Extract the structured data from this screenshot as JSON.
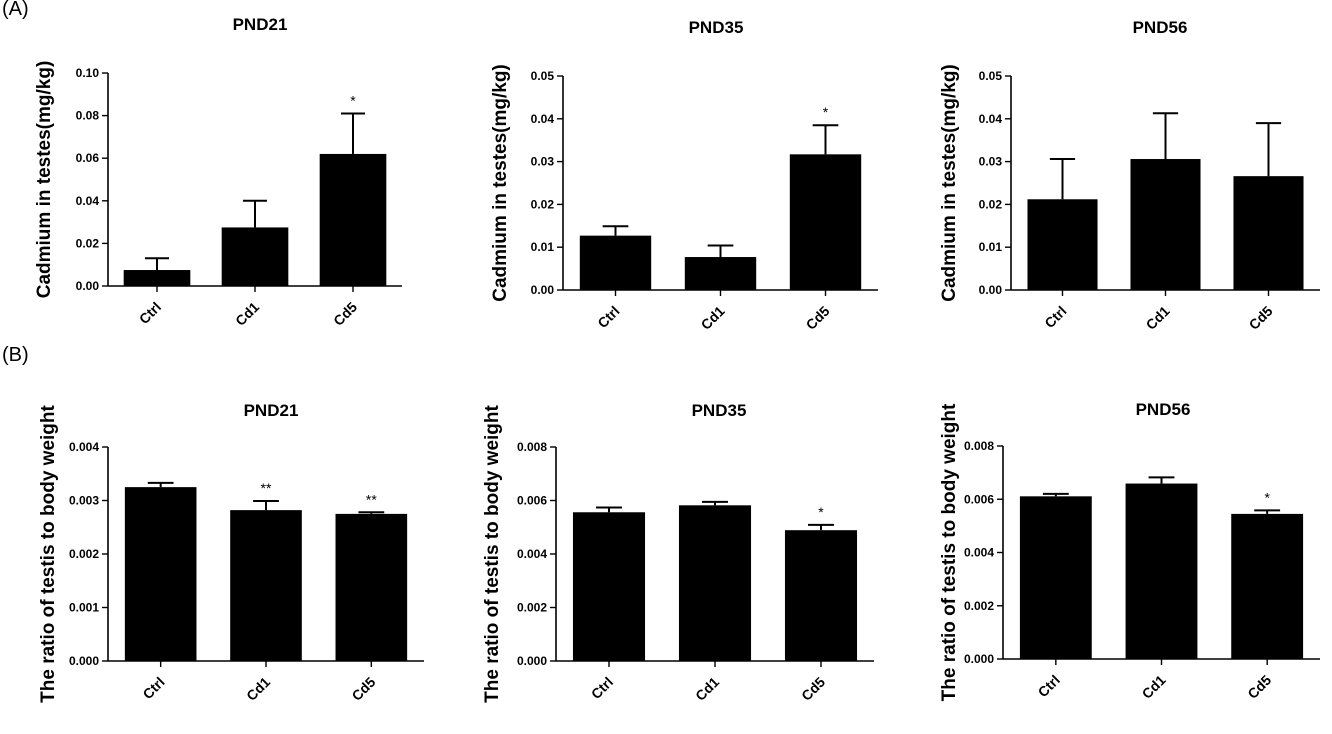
{
  "panels": {
    "A": "(A)",
    "B": "(B)"
  },
  "colors": {
    "bar": "#000000",
    "axis": "#000000"
  },
  "chart_data": [
    {
      "type": "bar",
      "row": "A",
      "title": "PND21",
      "ylabel": "Cadmium in testes(mg/kg)",
      "xlabel": "",
      "categories": [
        "Ctrl",
        "Cd1",
        "Cd5"
      ],
      "values": [
        0.0075,
        0.0275,
        0.062
      ],
      "errors": [
        0.0055,
        0.0125,
        0.019
      ],
      "annotations": [
        "",
        "",
        "*"
      ],
      "ylim": [
        0,
        0.1
      ],
      "yticks": [
        "0.00",
        "0.02",
        "0.04",
        "0.06",
        "0.08",
        "0.10"
      ],
      "grid": false
    },
    {
      "type": "bar",
      "row": "A",
      "title": "PND35",
      "ylabel": "Cadmium in testes(mg/kg)",
      "xlabel": "",
      "categories": [
        "Ctrl",
        "Cd1",
        "Cd5"
      ],
      "values": [
        0.0127,
        0.0077,
        0.0317
      ],
      "errors": [
        0.0022,
        0.0027,
        0.0068
      ],
      "annotations": [
        "",
        "",
        "*"
      ],
      "ylim": [
        0,
        0.05
      ],
      "yticks": [
        "0.00",
        "0.01",
        "0.02",
        "0.03",
        "0.04",
        "0.05"
      ],
      "grid": false
    },
    {
      "type": "bar",
      "row": "A",
      "title": "PND56",
      "ylabel": "Cadmium in testes(mg/kg)",
      "xlabel": "",
      "categories": [
        "Ctrl",
        "Cd1",
        "Cd5"
      ],
      "values": [
        0.0212,
        0.0306,
        0.0266
      ],
      "errors": [
        0.0094,
        0.0107,
        0.0124
      ],
      "annotations": [
        "",
        "",
        ""
      ],
      "ylim": [
        0,
        0.05
      ],
      "yticks": [
        "0.00",
        "0.01",
        "0.02",
        "0.03",
        "0.04",
        "0.05"
      ],
      "grid": false
    },
    {
      "type": "bar",
      "row": "B",
      "title": "PND21",
      "ylabel": "The ratio of testis to body weight",
      "xlabel": "",
      "categories": [
        "Ctrl",
        "Cd1",
        "Cd5"
      ],
      "values": [
        0.00325,
        0.00282,
        0.00275
      ],
      "errors": [
        8e-05,
        0.00017,
        3e-05
      ],
      "annotations": [
        "",
        "**",
        "**"
      ],
      "ylim": [
        0,
        0.004
      ],
      "yticks": [
        "0.000",
        "0.001",
        "0.002",
        "0.003",
        "0.004"
      ],
      "grid": false
    },
    {
      "type": "bar",
      "row": "B",
      "title": "PND35",
      "ylabel": "The ratio of testis to body weight",
      "xlabel": "",
      "categories": [
        "Ctrl",
        "Cd1",
        "Cd5"
      ],
      "values": [
        0.00556,
        0.00582,
        0.00489
      ],
      "errors": [
        0.00018,
        0.00013,
        0.0002
      ],
      "annotations": [
        "",
        "",
        "*"
      ],
      "ylim": [
        0,
        0.008
      ],
      "yticks": [
        "0.000",
        "0.002",
        "0.004",
        "0.006",
        "0.008"
      ],
      "grid": false
    },
    {
      "type": "bar",
      "row": "B",
      "title": "PND56",
      "ylabel": "The ratio of testis to body weight",
      "xlabel": "",
      "categories": [
        "Ctrl",
        "Cd1",
        "Cd5"
      ],
      "values": [
        0.00611,
        0.00659,
        0.00545
      ],
      "errors": [
        9e-05,
        0.00023,
        0.00013
      ],
      "annotations": [
        "",
        "",
        "*"
      ],
      "ylim": [
        0,
        0.008
      ],
      "yticks": [
        "0.000",
        "0.002",
        "0.004",
        "0.006",
        "0.008"
      ],
      "grid": false
    }
  ]
}
